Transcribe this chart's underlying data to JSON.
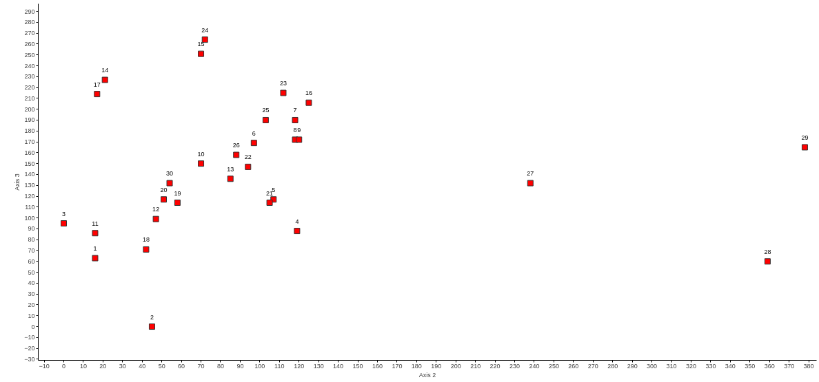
{
  "chart_data": {
    "type": "scatter",
    "xlabel": "Axis 2",
    "ylabel": "Axis 3",
    "x": [
      16,
      45,
      0,
      119,
      107,
      97,
      118,
      118,
      120,
      70,
      16,
      47,
      85,
      21,
      70,
      125,
      17,
      42,
      58,
      51,
      105,
      94,
      112,
      72,
      103,
      88,
      238,
      359,
      378,
      54
    ],
    "series": [
      {
        "color": "#ff0000",
        "values": [
          63,
          0,
          95,
          88,
          117,
          169,
          190,
          172,
          172,
          150,
          86,
          99,
          136,
          227,
          251,
          206,
          214,
          71,
          114,
          117,
          114,
          147,
          215,
          264,
          190,
          158,
          132,
          60,
          165,
          132
        ]
      }
    ],
    "annotations": [
      {
        "text": "1",
        "x": 16,
        "y": 63
      },
      {
        "text": "2",
        "x": 45,
        "y": 0
      },
      {
        "text": "3",
        "x": 0,
        "y": 95
      },
      {
        "text": "4",
        "x": 119,
        "y": 88
      },
      {
        "text": "5",
        "x": 107,
        "y": 117
      },
      {
        "text": "6",
        "x": 97,
        "y": 169
      },
      {
        "text": "7",
        "x": 118,
        "y": 190
      },
      {
        "text": "8",
        "x": 118,
        "y": 172
      },
      {
        "text": "9",
        "x": 120,
        "y": 172
      },
      {
        "text": "10",
        "x": 70,
        "y": 150
      },
      {
        "text": "11",
        "x": 16,
        "y": 86
      },
      {
        "text": "12",
        "x": 47,
        "y": 99
      },
      {
        "text": "13",
        "x": 85,
        "y": 136
      },
      {
        "text": "14",
        "x": 21,
        "y": 227
      },
      {
        "text": "15",
        "x": 70,
        "y": 251
      },
      {
        "text": "16",
        "x": 125,
        "y": 206
      },
      {
        "text": "17",
        "x": 17,
        "y": 214
      },
      {
        "text": "18",
        "x": 42,
        "y": 71
      },
      {
        "text": "19",
        "x": 58,
        "y": 114
      },
      {
        "text": "20",
        "x": 51,
        "y": 117
      },
      {
        "text": "21",
        "x": 105,
        "y": 114
      },
      {
        "text": "22",
        "x": 94,
        "y": 147
      },
      {
        "text": "23",
        "x": 112,
        "y": 215
      },
      {
        "text": "24",
        "x": 72,
        "y": 264
      },
      {
        "text": "25",
        "x": 103,
        "y": 190
      },
      {
        "text": "26",
        "x": 88,
        "y": 158
      },
      {
        "text": "27",
        "x": 238,
        "y": 132
      },
      {
        "text": "28",
        "x": 359,
        "y": 60
      },
      {
        "text": "29",
        "x": 378,
        "y": 165
      },
      {
        "text": "30",
        "x": 54,
        "y": 132
      }
    ],
    "xlim": [
      -13,
      384
    ],
    "ylim": [
      -31,
      297
    ],
    "xticks": [
      -10,
      0,
      10,
      20,
      30,
      40,
      50,
      60,
      70,
      80,
      90,
      100,
      110,
      120,
      130,
      140,
      150,
      160,
      170,
      180,
      190,
      200,
      210,
      220,
      230,
      240,
      250,
      260,
      270,
      280,
      290,
      300,
      310,
      320,
      330,
      340,
      350,
      360,
      370,
      380
    ],
    "yticks": [
      -30,
      -20,
      -10,
      0,
      10,
      20,
      30,
      40,
      50,
      60,
      70,
      80,
      90,
      100,
      110,
      120,
      130,
      140,
      150,
      160,
      170,
      180,
      190,
      200,
      210,
      220,
      230,
      240,
      250,
      260,
      270,
      280,
      290
    ],
    "marker": "square",
    "grid": false
  }
}
